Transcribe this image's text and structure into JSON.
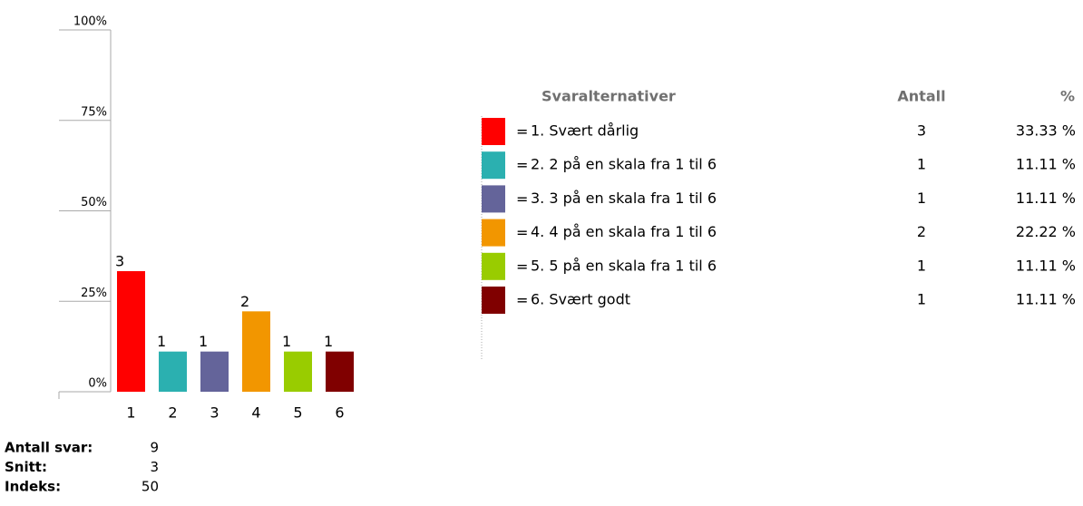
{
  "chart_data": {
    "type": "bar",
    "categories": [
      "1",
      "2",
      "3",
      "4",
      "5",
      "6"
    ],
    "values": [
      33.33,
      11.11,
      11.11,
      22.22,
      11.11,
      11.11
    ],
    "colors": [
      "#ff0000",
      "#2bb0b0",
      "#64649a",
      "#f29600",
      "#99cc00",
      "#800000"
    ],
    "ylim": [
      0,
      100
    ],
    "yticks": [
      {
        "value": 0,
        "label": "0%"
      },
      {
        "value": 25,
        "label": "25%"
      },
      {
        "value": 50,
        "label": "50%"
      },
      {
        "value": 75,
        "label": "75%"
      },
      {
        "value": 100,
        "label": "100%"
      }
    ]
  },
  "table": {
    "headers": [
      "Svaralternativer",
      "Antall",
      "%"
    ],
    "separator": "=",
    "rows": [
      {
        "label": "1. Svært dårlig",
        "count": 3,
        "percent": "33.33 %"
      },
      {
        "label": "2. 2 på en skala fra 1 til 6",
        "count": 1,
        "percent": "11.11 %"
      },
      {
        "label": "3. 3 på en skala fra 1 til 6",
        "count": 1,
        "percent": "11.11 %"
      },
      {
        "label": "4. 4 på en skala fra 1 til 6",
        "count": 2,
        "percent": "22.22 %"
      },
      {
        "label": "5. 5 på en skala fra 1 til 6",
        "count": 1,
        "percent": "11.11 %"
      },
      {
        "label": "6. Svært godt",
        "count": 1,
        "percent": "11.11 %"
      }
    ]
  },
  "summary": [
    {
      "label": "Antall svar:",
      "value": 9
    },
    {
      "label": "Snitt:",
      "value": 3
    },
    {
      "label": "Indeks:",
      "value": 50
    }
  ]
}
